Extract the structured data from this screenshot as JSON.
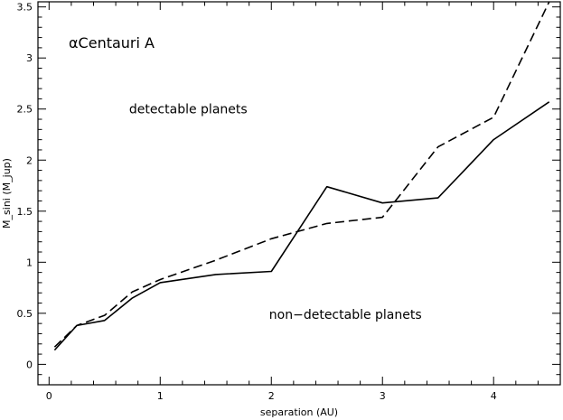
{
  "chart_data": {
    "type": "line",
    "title": "αCentauri A",
    "xlabel": "separation (AU)",
    "ylabel": "M_sini (M_jup)",
    "xlim": [
      -0.1,
      4.6
    ],
    "ylim": [
      -0.2,
      3.55
    ],
    "xticks": [
      0,
      1,
      2,
      3,
      4
    ],
    "yticks": [
      0,
      0.5,
      1,
      1.5,
      2,
      2.5,
      3,
      3.5
    ],
    "xtick_labels": [
      "0",
      "1",
      "2",
      "3",
      "4"
    ],
    "ytick_labels": [
      "0",
      "0.5",
      "1",
      "1.5",
      "2",
      "2.5",
      "3",
      "3.5"
    ],
    "grid": false,
    "series": [
      {
        "style": "solid",
        "x": [
          0.05,
          0.25,
          0.5,
          0.75,
          1.0,
          1.5,
          2.0,
          2.5,
          3.0,
          3.5,
          4.0,
          4.5
        ],
        "y": [
          0.14,
          0.38,
          0.43,
          0.65,
          0.8,
          0.88,
          0.91,
          1.74,
          1.58,
          1.63,
          2.2,
          2.57
        ]
      },
      {
        "style": "dashed",
        "x": [
          0.05,
          0.25,
          0.5,
          0.75,
          1.0,
          1.5,
          2.0,
          2.5,
          3.0,
          3.5,
          4.0,
          4.5
        ],
        "y": [
          0.17,
          0.38,
          0.48,
          0.71,
          0.83,
          1.02,
          1.23,
          1.38,
          1.44,
          2.13,
          2.42,
          3.55
        ]
      }
    ],
    "annotations": [
      {
        "text": "detectable planets",
        "x": 0.72,
        "y": 2.5
      },
      {
        "text": "non−detectable planets",
        "x": 1.98,
        "y": 0.49
      }
    ]
  }
}
